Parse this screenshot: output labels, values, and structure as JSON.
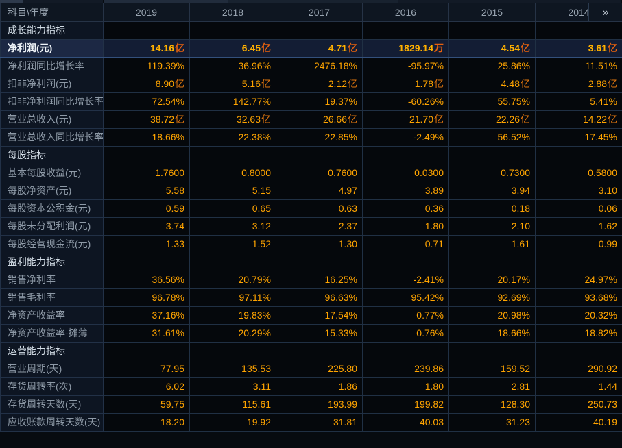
{
  "header": {
    "corner": "科目\\年度",
    "years": [
      "2019",
      "2018",
      "2017",
      "2016",
      "2015",
      "2014"
    ],
    "more": "»"
  },
  "sections": [
    {
      "title": "成长能力指标",
      "rows": [
        {
          "label": "净利润(元)",
          "highlight": true,
          "cells": [
            [
              "14.16",
              "亿"
            ],
            [
              "6.45",
              "亿"
            ],
            [
              "4.71",
              "亿"
            ],
            [
              "1829.14",
              "万"
            ],
            [
              "4.54",
              "亿"
            ],
            [
              "3.61",
              "亿"
            ]
          ]
        },
        {
          "label": "净利润同比增长率",
          "cells": [
            [
              "119.39%",
              ""
            ],
            [
              "36.96%",
              ""
            ],
            [
              "2476.18%",
              ""
            ],
            [
              "-95.97%",
              ""
            ],
            [
              "25.86%",
              ""
            ],
            [
              "11.51%",
              ""
            ]
          ]
        },
        {
          "label": "扣非净利润(元)",
          "cells": [
            [
              "8.90",
              "亿"
            ],
            [
              "5.16",
              "亿"
            ],
            [
              "2.12",
              "亿"
            ],
            [
              "1.78",
              "亿"
            ],
            [
              "4.48",
              "亿"
            ],
            [
              "2.88",
              "亿"
            ]
          ]
        },
        {
          "label": "扣非净利润同比增长率",
          "cells": [
            [
              "72.54%",
              ""
            ],
            [
              "142.77%",
              ""
            ],
            [
              "19.37%",
              ""
            ],
            [
              "-60.26%",
              ""
            ],
            [
              "55.75%",
              ""
            ],
            [
              "5.41%",
              ""
            ]
          ]
        },
        {
          "label": "营业总收入(元)",
          "cells": [
            [
              "38.72",
              "亿"
            ],
            [
              "32.63",
              "亿"
            ],
            [
              "26.66",
              "亿"
            ],
            [
              "21.70",
              "亿"
            ],
            [
              "22.26",
              "亿"
            ],
            [
              "14.22",
              "亿"
            ]
          ]
        },
        {
          "label": "营业总收入同比增长率",
          "cells": [
            [
              "18.66%",
              ""
            ],
            [
              "22.38%",
              ""
            ],
            [
              "22.85%",
              ""
            ],
            [
              "-2.49%",
              ""
            ],
            [
              "56.52%",
              ""
            ],
            [
              "17.45%",
              ""
            ]
          ]
        }
      ]
    },
    {
      "title": "每股指标",
      "rows": [
        {
          "label": "基本每股收益(元)",
          "cells": [
            [
              "1.7600",
              ""
            ],
            [
              "0.8000",
              ""
            ],
            [
              "0.7600",
              ""
            ],
            [
              "0.0300",
              ""
            ],
            [
              "0.7300",
              ""
            ],
            [
              "0.5800",
              ""
            ]
          ]
        },
        {
          "label": "每股净资产(元)",
          "cells": [
            [
              "5.58",
              ""
            ],
            [
              "5.15",
              ""
            ],
            [
              "4.97",
              ""
            ],
            [
              "3.89",
              ""
            ],
            [
              "3.94",
              ""
            ],
            [
              "3.10",
              ""
            ]
          ]
        },
        {
          "label": "每股资本公积金(元)",
          "cells": [
            [
              "0.59",
              ""
            ],
            [
              "0.65",
              ""
            ],
            [
              "0.63",
              ""
            ],
            [
              "0.36",
              ""
            ],
            [
              "0.18",
              ""
            ],
            [
              "0.06",
              ""
            ]
          ]
        },
        {
          "label": "每股未分配利润(元)",
          "cells": [
            [
              "3.74",
              ""
            ],
            [
              "3.12",
              ""
            ],
            [
              "2.37",
              ""
            ],
            [
              "1.80",
              ""
            ],
            [
              "2.10",
              ""
            ],
            [
              "1.62",
              ""
            ]
          ]
        },
        {
          "label": "每股经营现金流(元)",
          "cells": [
            [
              "1.33",
              ""
            ],
            [
              "1.52",
              ""
            ],
            [
              "1.30",
              ""
            ],
            [
              "0.71",
              ""
            ],
            [
              "1.61",
              ""
            ],
            [
              "0.99",
              ""
            ]
          ]
        }
      ]
    },
    {
      "title": "盈利能力指标",
      "rows": [
        {
          "label": "销售净利率",
          "cells": [
            [
              "36.56%",
              ""
            ],
            [
              "20.79%",
              ""
            ],
            [
              "16.25%",
              ""
            ],
            [
              "-2.41%",
              ""
            ],
            [
              "20.17%",
              ""
            ],
            [
              "24.97%",
              ""
            ]
          ]
        },
        {
          "label": "销售毛利率",
          "cells": [
            [
              "96.78%",
              ""
            ],
            [
              "97.11%",
              ""
            ],
            [
              "96.63%",
              ""
            ],
            [
              "95.42%",
              ""
            ],
            [
              "92.69%",
              ""
            ],
            [
              "93.68%",
              ""
            ]
          ]
        },
        {
          "label": "净资产收益率",
          "cells": [
            [
              "37.16%",
              ""
            ],
            [
              "19.83%",
              ""
            ],
            [
              "17.54%",
              ""
            ],
            [
              "0.77%",
              ""
            ],
            [
              "20.98%",
              ""
            ],
            [
              "20.32%",
              ""
            ]
          ]
        },
        {
          "label": "净资产收益率-摊薄",
          "cells": [
            [
              "31.61%",
              ""
            ],
            [
              "20.29%",
              ""
            ],
            [
              "15.33%",
              ""
            ],
            [
              "0.76%",
              ""
            ],
            [
              "18.66%",
              ""
            ],
            [
              "18.82%",
              ""
            ]
          ]
        }
      ]
    },
    {
      "title": "运营能力指标",
      "rows": [
        {
          "label": "营业周期(天)",
          "cells": [
            [
              "77.95",
              ""
            ],
            [
              "135.53",
              ""
            ],
            [
              "225.80",
              ""
            ],
            [
              "239.86",
              ""
            ],
            [
              "159.52",
              ""
            ],
            [
              "290.92",
              ""
            ]
          ]
        },
        {
          "label": "存货周转率(次)",
          "cells": [
            [
              "6.02",
              ""
            ],
            [
              "3.11",
              ""
            ],
            [
              "1.86",
              ""
            ],
            [
              "1.80",
              ""
            ],
            [
              "2.81",
              ""
            ],
            [
              "1.44",
              ""
            ]
          ]
        },
        {
          "label": "存货周转天数(天)",
          "cells": [
            [
              "59.75",
              ""
            ],
            [
              "115.61",
              ""
            ],
            [
              "193.99",
              ""
            ],
            [
              "199.82",
              ""
            ],
            [
              "128.30",
              ""
            ],
            [
              "250.73",
              ""
            ]
          ]
        },
        {
          "label": "应收账款周转天数(天)",
          "cells": [
            [
              "18.20",
              ""
            ],
            [
              "19.92",
              ""
            ],
            [
              "31.81",
              ""
            ],
            [
              "40.03",
              ""
            ],
            [
              "31.23",
              ""
            ],
            [
              "40.19",
              ""
            ]
          ]
        }
      ]
    }
  ],
  "colors": {
    "value_text": "#ffa400",
    "unit_text": "#e0760e",
    "label_text": "#8e9aa7",
    "section_text": "#d3dde6",
    "header_text": "#98a4b0",
    "highlight_row_bg": "#131d34",
    "grid_line": "#203044"
  }
}
